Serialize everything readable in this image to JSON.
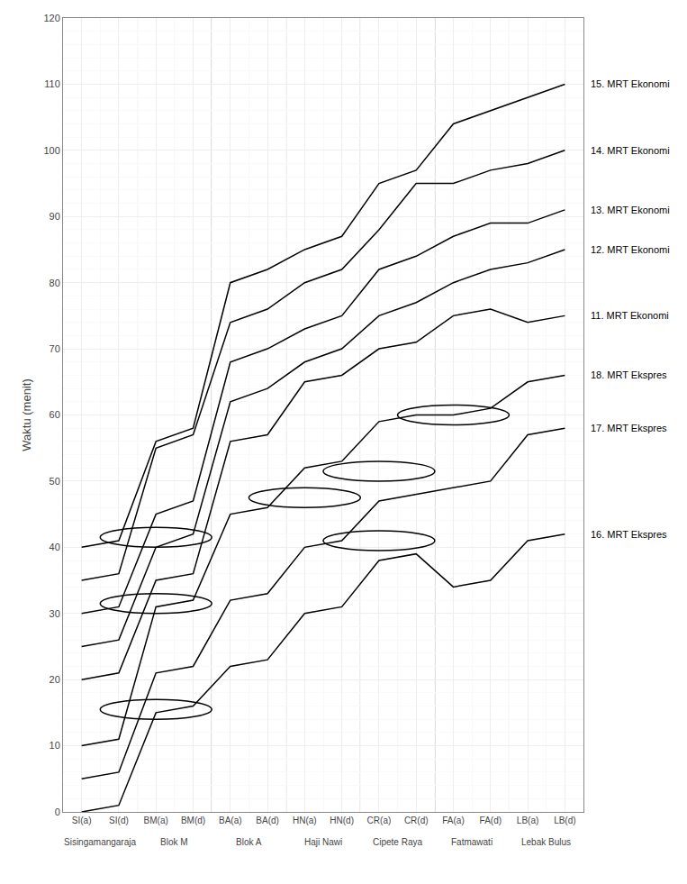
{
  "chart_data": {
    "type": "line",
    "categories": [
      "SI(a)",
      "SI(d)",
      "BM(a)",
      "BM(d)",
      "BA(a)",
      "BA(d)",
      "HN(a)",
      "HN(d)",
      "CR(a)",
      "CR(d)",
      "FA(a)",
      "FA(d)",
      "LB(a)",
      "LB(d)"
    ],
    "groups": [
      {
        "name": "Sisingamangaraja",
        "categories": [
          "SI(a)",
          "SI(d)"
        ]
      },
      {
        "name": "Blok M",
        "categories": [
          "BM(a)",
          "BM(d)"
        ]
      },
      {
        "name": "Blok A",
        "categories": [
          "BA(a)",
          "BA(d)"
        ]
      },
      {
        "name": "Haji Nawi",
        "categories": [
          "HN(a)",
          "HN(d)"
        ]
      },
      {
        "name": "Cipete Raya",
        "categories": [
          "CR(a)",
          "CR(d)"
        ]
      },
      {
        "name": "Fatmawati",
        "categories": [
          "FA(a)",
          "FA(d)"
        ]
      },
      {
        "name": "Lebak Bulus",
        "categories": [
          "LB(a)",
          "LB(d)"
        ]
      }
    ],
    "series": [
      {
        "name": "16. MRT Ekspres",
        "values": [
          0,
          1,
          15,
          16,
          22,
          23,
          30,
          31,
          38,
          39,
          34,
          35,
          41,
          42
        ]
      },
      {
        "name": "17. MRT Ekspres",
        "values": [
          5,
          6,
          21,
          22,
          32,
          33,
          40,
          41,
          47,
          48,
          49,
          50,
          57,
          58
        ]
      },
      {
        "name": "18. MRT Ekspres",
        "values": [
          10,
          11,
          31,
          32,
          45,
          46,
          52,
          53,
          59,
          60,
          60,
          61,
          65,
          66
        ]
      },
      {
        "name": "11. MRT Ekonomi",
        "values": [
          20,
          21,
          35,
          36,
          56,
          57,
          65,
          66,
          70,
          71,
          75,
          76,
          74,
          75
        ]
      },
      {
        "name": "12. MRT Ekonomi",
        "values": [
          25,
          26,
          40,
          42,
          62,
          64,
          68,
          70,
          75,
          77,
          80,
          82,
          83,
          85
        ]
      },
      {
        "name": "13. MRT Ekonomi",
        "values": [
          30,
          31,
          45,
          47,
          68,
          70,
          73,
          75,
          82,
          84,
          87,
          89,
          89,
          91
        ]
      },
      {
        "name": "14. MRT Ekonomi",
        "values": [
          35,
          36,
          55,
          57,
          74,
          76,
          80,
          82,
          88,
          95,
          95,
          97,
          98,
          100
        ]
      },
      {
        "name": "15. MRT Ekonomi",
        "values": [
          40,
          41,
          56,
          58,
          80,
          82,
          85,
          87,
          95,
          97,
          104,
          106,
          108,
          110
        ]
      }
    ],
    "circles": [
      {
        "x": "BM(a)",
        "y": 15.5
      },
      {
        "x": "BM(a)",
        "y": 31.5
      },
      {
        "x": "BM(a)",
        "y": 41.5
      },
      {
        "x": "HN(a)",
        "y": 47.5
      },
      {
        "x": "CR(a)",
        "y": 41.0
      },
      {
        "x": "CR(a)",
        "y": 51.5
      },
      {
        "x": "FA(a)",
        "y": 60.0
      }
    ],
    "color": "#000000",
    "ylabel": "Waktu (menit)",
    "ylim": [
      0,
      120
    ],
    "yticks": [
      0,
      10,
      20,
      30,
      40,
      50,
      60,
      70,
      80,
      90,
      100,
      110,
      120
    ],
    "grid": true
  }
}
